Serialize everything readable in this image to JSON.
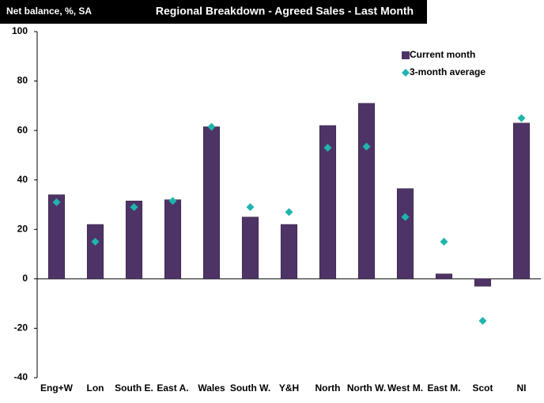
{
  "chart_data": {
    "type": "bar",
    "title": "Regional Breakdown - Agreed Sales - Last Month",
    "subtitle": "Net balance, %, SA",
    "categories": [
      "Eng+W",
      "Lon",
      "South E.",
      "East A.",
      "Wales",
      "South W.",
      "Y&H",
      "North",
      "North W.",
      "West M.",
      "East M.",
      "Scot",
      "NI"
    ],
    "series": [
      {
        "name": "Current month",
        "type": "bar",
        "color": "#4e3466",
        "values": [
          34,
          22,
          31.5,
          32,
          61.5,
          25,
          22,
          62,
          71,
          36.5,
          2,
          -3,
          63
        ]
      },
      {
        "name": "3-month average",
        "type": "scatter",
        "color": "#1fb5ad",
        "values": [
          31,
          15,
          29,
          31.5,
          61.5,
          29,
          27,
          53,
          53.5,
          25,
          15,
          -17,
          65
        ]
      }
    ],
    "ylim": [
      -40,
      100
    ],
    "yticks": [
      -40,
      -20,
      0,
      20,
      40,
      60,
      80,
      100
    ],
    "legend": "top-right",
    "grid": false
  }
}
